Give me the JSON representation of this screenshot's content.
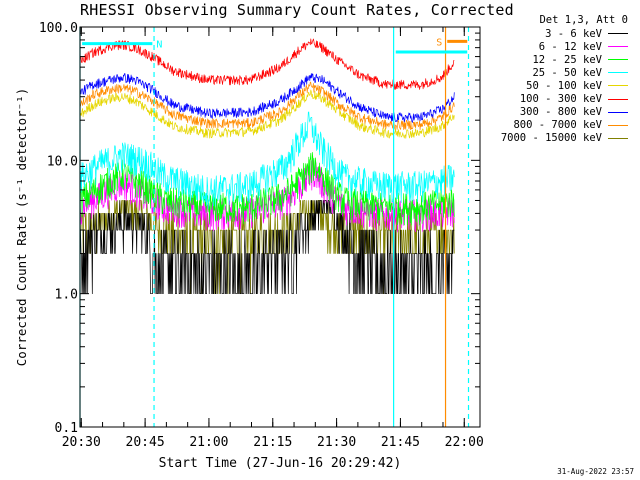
{
  "title": "RHESSI Observing Summary Count Rates, Corrected",
  "legend": {
    "header": "Det 1,3, Att 0",
    "entries": [
      {
        "label": "3 - 6 keV",
        "color": "#000000"
      },
      {
        "label": "6 - 12 keV",
        "color": "#ff00ff"
      },
      {
        "label": "12 - 25 keV",
        "color": "#00ff00"
      },
      {
        "label": "25 - 50 keV",
        "color": "#00ffff"
      },
      {
        "label": "50 - 100 keV",
        "color": "#e6d600"
      },
      {
        "label": "100 - 300 keV",
        "color": "#ff0000"
      },
      {
        "label": "300 - 800 keV",
        "color": "#0000ff"
      },
      {
        "label": "800 - 7000 keV",
        "color": "#ff8c00"
      },
      {
        "label": "7000 - 15000 keV",
        "color": "#808000"
      }
    ]
  },
  "markers": {
    "night_label": "N",
    "saa_label": "S"
  },
  "footer": "31-Aug-2022 23:57",
  "chart_data": {
    "type": "line",
    "title": "RHESSI Observing Summary Count Rates, Corrected",
    "xlabel": "Start Time (27-Jun-16 20:29:42)",
    "ylabel": "Corrected Count Rate (s⁻¹ detector⁻¹)",
    "x_unit": "minutes after 20:29:42",
    "xlim": [
      0,
      94
    ],
    "x_ticks": [
      {
        "t": 0.3,
        "label": "20:30"
      },
      {
        "t": 15.3,
        "label": "20:45"
      },
      {
        "t": 30.3,
        "label": "21:00"
      },
      {
        "t": 45.3,
        "label": "21:15"
      },
      {
        "t": 60.3,
        "label": "21:30"
      },
      {
        "t": 75.3,
        "label": "21:45"
      },
      {
        "t": 90.3,
        "label": "22:00"
      }
    ],
    "y_scale": "log",
    "ylim": [
      0.1,
      100
    ],
    "y_ticks": [
      {
        "v": 0.1,
        "label": "0.1"
      },
      {
        "v": 1,
        "label": "1.0"
      },
      {
        "v": 10,
        "label": "10.0"
      },
      {
        "v": 100,
        "label": "100.0"
      }
    ],
    "vertical_lines": [
      {
        "t": 0.0,
        "color": "#00ffff",
        "style": "solid"
      },
      {
        "t": 17.4,
        "color": "#00ffff",
        "style": "dashed"
      },
      {
        "t": 73.7,
        "color": "#00ffff",
        "style": "solid"
      },
      {
        "t": 85.9,
        "color": "#ff8c00",
        "style": "solid"
      },
      {
        "t": 91.3,
        "color": "#00ffff",
        "style": "dashed"
      }
    ],
    "intervals": [
      {
        "label": "N",
        "color": "#00ffff",
        "x": [
          0.5,
          17.0
        ],
        "y": 75
      },
      {
        "label": "",
        "color": "#00ffff",
        "x": [
          74.2,
          91.0
        ],
        "y": 65
      },
      {
        "label": "S",
        "color": "#ff8c00",
        "x": [
          86.3,
          91.0
        ],
        "y": 78
      }
    ],
    "series": [
      {
        "name": "3 - 6 keV",
        "color": "#000000",
        "points": [
          [
            0,
            2.2
          ],
          [
            5,
            3
          ],
          [
            10,
            3.5
          ],
          [
            15,
            3.2
          ],
          [
            17.5,
            2
          ],
          [
            18,
            1.5
          ],
          [
            30,
            1.5
          ],
          [
            40,
            1.5
          ],
          [
            50,
            2.5
          ],
          [
            55,
            4
          ],
          [
            58,
            5
          ],
          [
            62,
            3
          ],
          [
            66,
            2
          ],
          [
            70,
            1.6
          ],
          [
            80,
            1.5
          ],
          [
            86,
            1.5
          ],
          [
            88,
            2
          ]
        ]
      },
      {
        "name": "6 - 12 keV",
        "color": "#ff00ff",
        "points": [
          [
            0,
            4.5
          ],
          [
            5,
            5.5
          ],
          [
            10,
            7
          ],
          [
            15,
            5.5
          ],
          [
            20,
            4.5
          ],
          [
            30,
            4
          ],
          [
            40,
            4.2
          ],
          [
            48,
            5
          ],
          [
            53,
            7
          ],
          [
            55,
            8.5
          ],
          [
            58,
            6
          ],
          [
            62,
            4.5
          ],
          [
            70,
            4
          ],
          [
            80,
            4
          ],
          [
            88,
            4.2
          ]
        ]
      },
      {
        "name": "12 - 25 keV",
        "color": "#00ff00",
        "points": [
          [
            0,
            5
          ],
          [
            5,
            6.5
          ],
          [
            10,
            8
          ],
          [
            15,
            6.5
          ],
          [
            20,
            5
          ],
          [
            30,
            4.5
          ],
          [
            40,
            4.5
          ],
          [
            48,
            5.5
          ],
          [
            53,
            8
          ],
          [
            55,
            9.5
          ],
          [
            58,
            7
          ],
          [
            62,
            5
          ],
          [
            70,
            4.5
          ],
          [
            80,
            4.5
          ],
          [
            88,
            5
          ]
        ]
      },
      {
        "name": "25 - 50 keV",
        "color": "#00ffff",
        "points": [
          [
            0,
            7.5
          ],
          [
            5,
            9.5
          ],
          [
            10,
            11
          ],
          [
            15,
            10
          ],
          [
            20,
            7.5
          ],
          [
            30,
            6
          ],
          [
            40,
            6.5
          ],
          [
            48,
            9
          ],
          [
            52,
            15
          ],
          [
            54,
            19
          ],
          [
            57,
            12
          ],
          [
            62,
            7.5
          ],
          [
            70,
            6.5
          ],
          [
            80,
            6.5
          ],
          [
            88,
            7.5
          ]
        ]
      },
      {
        "name": "50 - 100 keV",
        "color": "#e6d600",
        "points": [
          [
            0,
            22
          ],
          [
            3,
            26
          ],
          [
            7,
            29
          ],
          [
            10,
            30
          ],
          [
            13,
            28
          ],
          [
            17,
            23
          ],
          [
            22,
            18
          ],
          [
            30,
            16
          ],
          [
            40,
            16.5
          ],
          [
            47,
            20
          ],
          [
            51,
            26
          ],
          [
            54,
            32
          ],
          [
            57,
            29
          ],
          [
            61,
            23
          ],
          [
            66,
            18
          ],
          [
            72,
            16
          ],
          [
            80,
            16
          ],
          [
            85,
            18
          ],
          [
            88,
            22
          ]
        ]
      },
      {
        "name": "100 - 300 keV",
        "color": "#ff0000",
        "points": [
          [
            0,
            55
          ],
          [
            3,
            64
          ],
          [
            7,
            72
          ],
          [
            10,
            74
          ],
          [
            13,
            70
          ],
          [
            17,
            60
          ],
          [
            22,
            47
          ],
          [
            30,
            40
          ],
          [
            40,
            40
          ],
          [
            47,
            50
          ],
          [
            51,
            65
          ],
          [
            54,
            77
          ],
          [
            57,
            70
          ],
          [
            61,
            55
          ],
          [
            66,
            43
          ],
          [
            72,
            37
          ],
          [
            80,
            37
          ],
          [
            85,
            42
          ],
          [
            88,
            55
          ]
        ]
      },
      {
        "name": "300 - 800 keV",
        "color": "#0000ff",
        "points": [
          [
            0,
            32
          ],
          [
            3,
            37
          ],
          [
            7,
            40
          ],
          [
            10,
            42
          ],
          [
            13,
            40
          ],
          [
            17,
            34
          ],
          [
            22,
            26
          ],
          [
            30,
            22.5
          ],
          [
            40,
            23
          ],
          [
            47,
            28
          ],
          [
            51,
            35
          ],
          [
            54,
            42
          ],
          [
            57,
            40
          ],
          [
            61,
            32
          ],
          [
            66,
            25
          ],
          [
            72,
            21
          ],
          [
            80,
            21
          ],
          [
            85,
            24
          ],
          [
            88,
            30
          ]
        ]
      },
      {
        "name": "800 - 7000 keV",
        "color": "#ff8c00",
        "points": [
          [
            0,
            26
          ],
          [
            3,
            31
          ],
          [
            7,
            34
          ],
          [
            10,
            35
          ],
          [
            13,
            33
          ],
          [
            17,
            28
          ],
          [
            22,
            22
          ],
          [
            30,
            19
          ],
          [
            40,
            19
          ],
          [
            47,
            23
          ],
          [
            51,
            30
          ],
          [
            54,
            36
          ],
          [
            57,
            33
          ],
          [
            61,
            26
          ],
          [
            66,
            21
          ],
          [
            72,
            18.5
          ],
          [
            80,
            18.5
          ],
          [
            85,
            21
          ],
          [
            88,
            26
          ]
        ]
      },
      {
        "name": "7000 - 15000 keV",
        "color": "#808000",
        "points": [
          [
            0,
            3
          ],
          [
            5,
            3.5
          ],
          [
            10,
            4.5
          ],
          [
            15,
            4
          ],
          [
            20,
            3
          ],
          [
            30,
            2.5
          ],
          [
            40,
            2.7
          ],
          [
            48,
            3
          ],
          [
            53,
            4
          ],
          [
            55,
            4.5
          ],
          [
            58,
            3.5
          ],
          [
            62,
            3
          ],
          [
            70,
            2.7
          ],
          [
            80,
            2.7
          ],
          [
            88,
            3
          ]
        ]
      }
    ]
  }
}
